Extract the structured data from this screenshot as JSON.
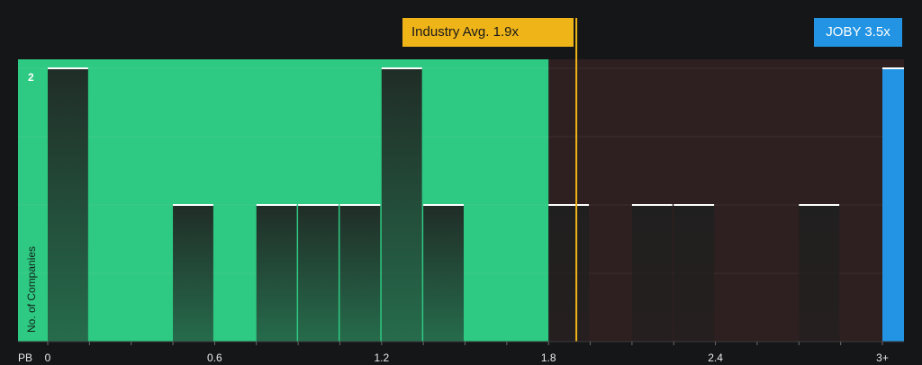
{
  "chart_data": {
    "type": "bar",
    "metric_label": "PB",
    "ylabel": "No. of Companies",
    "bin_width": 0.15,
    "x_range": [
      0,
      3.15
    ],
    "ylim": [
      0,
      2
    ],
    "y_tick_labels": [
      "2"
    ],
    "x_tick_labels": [
      {
        "value": 0,
        "label": "0"
      },
      {
        "value": 0.6,
        "label": "0.6"
      },
      {
        "value": 1.2,
        "label": "1.2"
      },
      {
        "value": 1.8,
        "label": "1.8"
      },
      {
        "value": 2.4,
        "label": "2.4"
      },
      {
        "value": 3.0,
        "label": "3+"
      }
    ],
    "bars": [
      {
        "x": 0.0,
        "value": 2
      },
      {
        "x": 0.45,
        "value": 1
      },
      {
        "x": 0.75,
        "value": 1
      },
      {
        "x": 0.9,
        "value": 1
      },
      {
        "x": 1.05,
        "value": 1
      },
      {
        "x": 1.2,
        "value": 2
      },
      {
        "x": 1.35,
        "value": 1
      },
      {
        "x": 1.8,
        "value": 1
      },
      {
        "x": 2.1,
        "value": 1
      },
      {
        "x": 2.25,
        "value": 1
      },
      {
        "x": 2.7,
        "value": 1
      },
      {
        "x": 3.0,
        "value": 2,
        "highlight": true
      }
    ],
    "fair_range_end": 1.8,
    "industry_avg": {
      "value": 1.9,
      "label": "Industry Avg. 1.9x"
    },
    "company": {
      "value": 3.5,
      "label": "JOBY 3.5x"
    },
    "grid": true,
    "colors": {
      "background": "#151617",
      "fair_zone": "#2ec982",
      "expensive_zone": "#2e1f20",
      "bar": "#1f1f1f",
      "bar_top": "#ffffff",
      "industry": "#efb418",
      "company": "#2394e3",
      "axis_text": "#e9e9e9"
    }
  }
}
